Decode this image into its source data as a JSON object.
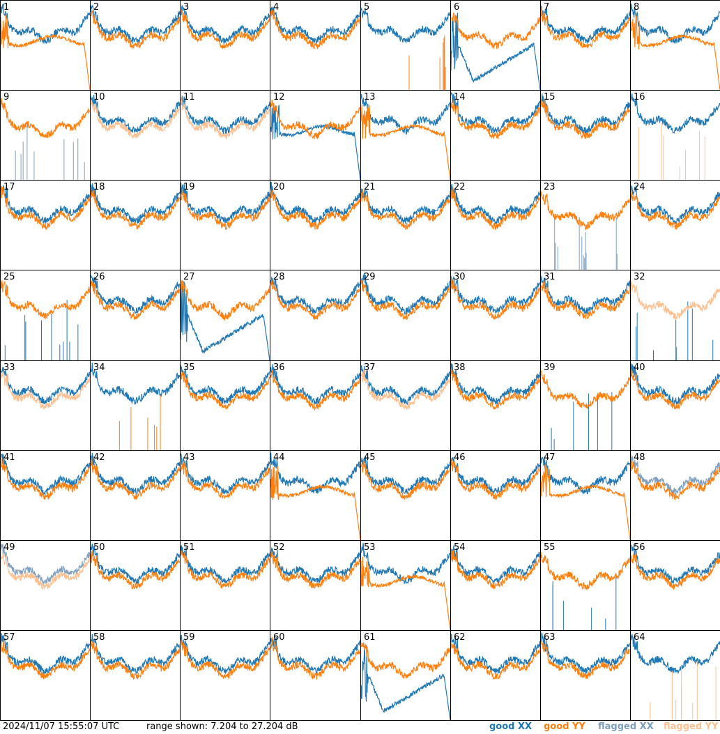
{
  "footer": {
    "timestamp": "2024/11/07 15:55:07 UTC",
    "range_text": "range shown: 7.204 to 27.204 dB"
  },
  "legend": [
    {
      "key": "good_xx",
      "label": "good XX",
      "color": "#1f77b4"
    },
    {
      "key": "good_yy",
      "label": "good YY",
      "color": "#ff7f0e"
    },
    {
      "key": "flagged_xx",
      "label": "flagged XX",
      "color": "#7f9fbf"
    },
    {
      "key": "flagged_yy",
      "label": "flagged YY",
      "color": "#ffbf8f"
    }
  ],
  "chart_data": {
    "type": "line",
    "panel_layout": "8x8 grid",
    "y_range_db": [
      7.204,
      27.204
    ],
    "panels": [
      {
        "id": "1",
        "xx": "good",
        "yy": "good",
        "xx_shape": "normal",
        "yy_shape": "plateau"
      },
      {
        "id": "2",
        "xx": "good",
        "yy": "good",
        "xx_shape": "normal",
        "yy_shape": "normal"
      },
      {
        "id": "3",
        "xx": "good",
        "yy": "good",
        "xx_shape": "normal",
        "yy_shape": "normal"
      },
      {
        "id": "4",
        "xx": "good",
        "yy": "good",
        "xx_shape": "normal",
        "yy_shape": "normal"
      },
      {
        "id": "5",
        "xx": "good",
        "yy": "good",
        "xx_shape": "normal",
        "yy_shape": "spiky"
      },
      {
        "id": "6",
        "xx": "good",
        "yy": "good",
        "xx_shape": "dip",
        "yy_shape": "normal"
      },
      {
        "id": "7",
        "xx": "good",
        "yy": "good",
        "xx_shape": "normal",
        "yy_shape": "normal"
      },
      {
        "id": "8",
        "xx": "good",
        "yy": "good",
        "xx_shape": "normal",
        "yy_shape": "plateau"
      },
      {
        "id": "9",
        "xx": "flagged",
        "yy": "good",
        "xx_shape": "spiky",
        "yy_shape": "normal"
      },
      {
        "id": "10",
        "xx": "good",
        "yy": "flagged",
        "xx_shape": "normal",
        "yy_shape": "normal"
      },
      {
        "id": "11",
        "xx": "good",
        "yy": "flagged",
        "xx_shape": "normal",
        "yy_shape": "normal"
      },
      {
        "id": "12",
        "xx": "good",
        "yy": "good",
        "xx_shape": "plateau",
        "yy_shape": "normal"
      },
      {
        "id": "13",
        "xx": "good",
        "yy": "good",
        "xx_shape": "normal",
        "yy_shape": "plateau"
      },
      {
        "id": "14",
        "xx": "good",
        "yy": "good",
        "xx_shape": "normal",
        "yy_shape": "normal"
      },
      {
        "id": "15",
        "xx": "good",
        "yy": "good",
        "xx_shape": "normal",
        "yy_shape": "normal"
      },
      {
        "id": "16",
        "xx": "good",
        "yy": "flagged",
        "xx_shape": "normal",
        "yy_shape": "spiky"
      },
      {
        "id": "17",
        "xx": "good",
        "yy": "good",
        "xx_shape": "normal",
        "yy_shape": "normal"
      },
      {
        "id": "18",
        "xx": "good",
        "yy": "good",
        "xx_shape": "normal",
        "yy_shape": "normal"
      },
      {
        "id": "19",
        "xx": "good",
        "yy": "good",
        "xx_shape": "normal",
        "yy_shape": "normal"
      },
      {
        "id": "20",
        "xx": "good",
        "yy": "good",
        "xx_shape": "normal",
        "yy_shape": "normal"
      },
      {
        "id": "21",
        "xx": "good",
        "yy": "good",
        "xx_shape": "normal",
        "yy_shape": "normal"
      },
      {
        "id": "22",
        "xx": "good",
        "yy": "good",
        "xx_shape": "normal",
        "yy_shape": "normal"
      },
      {
        "id": "23",
        "xx": "flagged",
        "yy": "good",
        "xx_shape": "spiky",
        "yy_shape": "normal"
      },
      {
        "id": "24",
        "xx": "good",
        "yy": "good",
        "xx_shape": "normal",
        "yy_shape": "normal"
      },
      {
        "id": "25",
        "xx": "good",
        "yy": "good",
        "xx_shape": "spiky",
        "yy_shape": "normal"
      },
      {
        "id": "26",
        "xx": "good",
        "yy": "good",
        "xx_shape": "normal",
        "yy_shape": "normal"
      },
      {
        "id": "27",
        "xx": "good",
        "yy": "good",
        "xx_shape": "dip",
        "yy_shape": "normal"
      },
      {
        "id": "28",
        "xx": "good",
        "yy": "good",
        "xx_shape": "normal",
        "yy_shape": "normal"
      },
      {
        "id": "29",
        "xx": "good",
        "yy": "good",
        "xx_shape": "normal",
        "yy_shape": "normal"
      },
      {
        "id": "30",
        "xx": "good",
        "yy": "good",
        "xx_shape": "normal",
        "yy_shape": "normal"
      },
      {
        "id": "31",
        "xx": "good",
        "yy": "good",
        "xx_shape": "normal",
        "yy_shape": "normal"
      },
      {
        "id": "32",
        "xx": "good",
        "yy": "flagged",
        "xx_shape": "spiky",
        "yy_shape": "normal"
      },
      {
        "id": "33",
        "xx": "good",
        "yy": "flagged",
        "xx_shape": "normal",
        "yy_shape": "normal"
      },
      {
        "id": "34",
        "xx": "good",
        "yy": "good",
        "xx_shape": "normal",
        "yy_shape": "spiky"
      },
      {
        "id": "35",
        "xx": "good",
        "yy": "good",
        "xx_shape": "normal",
        "yy_shape": "normal"
      },
      {
        "id": "36",
        "xx": "good",
        "yy": "good",
        "xx_shape": "normal",
        "yy_shape": "normal"
      },
      {
        "id": "37",
        "xx": "good",
        "yy": "flagged",
        "xx_shape": "normal",
        "yy_shape": "normal"
      },
      {
        "id": "38",
        "xx": "good",
        "yy": "good",
        "xx_shape": "normal",
        "yy_shape": "normal"
      },
      {
        "id": "39",
        "xx": "good",
        "yy": "good",
        "xx_shape": "spiky",
        "yy_shape": "normal"
      },
      {
        "id": "40",
        "xx": "good",
        "yy": "good",
        "xx_shape": "normal",
        "yy_shape": "normal"
      },
      {
        "id": "41",
        "xx": "good",
        "yy": "good",
        "xx_shape": "normal",
        "yy_shape": "normal"
      },
      {
        "id": "42",
        "xx": "good",
        "yy": "good",
        "xx_shape": "normal",
        "yy_shape": "normal"
      },
      {
        "id": "43",
        "xx": "good",
        "yy": "good",
        "xx_shape": "normal",
        "yy_shape": "normal"
      },
      {
        "id": "44",
        "xx": "good",
        "yy": "good",
        "xx_shape": "normal",
        "yy_shape": "plateau"
      },
      {
        "id": "45",
        "xx": "good",
        "yy": "good",
        "xx_shape": "normal",
        "yy_shape": "normal"
      },
      {
        "id": "46",
        "xx": "good",
        "yy": "good",
        "xx_shape": "normal",
        "yy_shape": "normal"
      },
      {
        "id": "47",
        "xx": "good",
        "yy": "good",
        "xx_shape": "normal",
        "yy_shape": "plateau"
      },
      {
        "id": "48",
        "xx": "flagged",
        "yy": "good",
        "xx_shape": "normal",
        "yy_shape": "normal"
      },
      {
        "id": "49",
        "xx": "flagged",
        "yy": "flagged",
        "xx_shape": "normal",
        "yy_shape": "normal"
      },
      {
        "id": "50",
        "xx": "good",
        "yy": "good",
        "xx_shape": "normal",
        "yy_shape": "normal"
      },
      {
        "id": "51",
        "xx": "good",
        "yy": "good",
        "xx_shape": "normal",
        "yy_shape": "normal"
      },
      {
        "id": "52",
        "xx": "good",
        "yy": "good",
        "xx_shape": "normal",
        "yy_shape": "normal"
      },
      {
        "id": "53",
        "xx": "good",
        "yy": "good",
        "xx_shape": "normal",
        "yy_shape": "plateau"
      },
      {
        "id": "54",
        "xx": "good",
        "yy": "good",
        "xx_shape": "normal",
        "yy_shape": "normal"
      },
      {
        "id": "55",
        "xx": "good",
        "yy": "good",
        "xx_shape": "spiky",
        "yy_shape": "normal"
      },
      {
        "id": "56",
        "xx": "good",
        "yy": "good",
        "xx_shape": "normal",
        "yy_shape": "normal"
      },
      {
        "id": "57",
        "xx": "good",
        "yy": "good",
        "xx_shape": "normal",
        "yy_shape": "normal"
      },
      {
        "id": "58",
        "xx": "good",
        "yy": "good",
        "xx_shape": "normal",
        "yy_shape": "normal"
      },
      {
        "id": "59",
        "xx": "good",
        "yy": "good",
        "xx_shape": "normal",
        "yy_shape": "normal"
      },
      {
        "id": "60",
        "xx": "good",
        "yy": "good",
        "xx_shape": "normal",
        "yy_shape": "normal"
      },
      {
        "id": "61",
        "xx": "good",
        "yy": "good",
        "xx_shape": "dip",
        "yy_shape": "normal"
      },
      {
        "id": "62",
        "xx": "good",
        "yy": "good",
        "xx_shape": "normal",
        "yy_shape": "normal"
      },
      {
        "id": "63",
        "xx": "good",
        "yy": "good",
        "xx_shape": "normal",
        "yy_shape": "normal"
      },
      {
        "id": "64",
        "xx": "good",
        "yy": "flagged",
        "xx_shape": "normal",
        "yy_shape": "spiky"
      }
    ]
  }
}
